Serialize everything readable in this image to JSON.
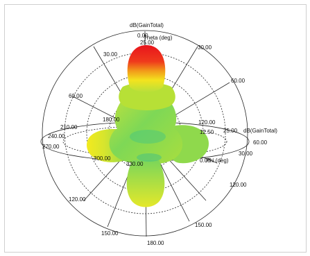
{
  "plot": {
    "title": "dB(GainTotal)",
    "theta_label": "Theta (deg)",
    "phi_label": "Phi (deg)",
    "gain_axis_label": "dB(GainTotal)",
    "colors": {
      "peak": "#e8141c",
      "high": "#f0e21a",
      "mid": "#a8de3c",
      "low": "#38c27a",
      "grid": "#222222",
      "frame": "#cfcfcf"
    },
    "theta_labels": {
      "t0": "0.00",
      "t30_left": "30.00",
      "t30_right": "30.00",
      "t60_left": "60.00",
      "t60_right": "60.00",
      "t90_right": "60.00",
      "t120_left": "120.00",
      "t120_right": "120.00",
      "t150_left": "150.00",
      "t150_right": "150.00",
      "t180": "180.00"
    },
    "phi_labels": {
      "p180": "180.00",
      "p120": "120.00",
      "p210": "210.00",
      "p240": "240.00",
      "p270": "270.00",
      "p300": "300.00",
      "p330": "330.00",
      "p30": "30.00",
      "p0": "0.00"
    },
    "gain_labels": {
      "g25_top": "25.00",
      "g12_50": "12.50",
      "g25_right": "25.00",
      "g0": "0.00"
    }
  }
}
